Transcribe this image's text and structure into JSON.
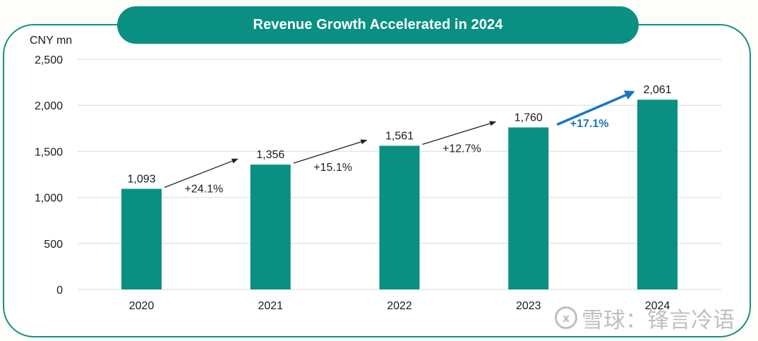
{
  "title": "Revenue Growth Accelerated in 2024",
  "watermark": {
    "logo": "x",
    "text": "雪球：锋言冷语"
  },
  "colors": {
    "bar": "#0a9082",
    "frame": "#14907f",
    "arrow": "#222222",
    "highlight_arrow": "#1777c4",
    "gridline": "#e6e6e6",
    "text": "#1a1a1a"
  },
  "chart_data": {
    "type": "bar",
    "title": "Revenue Growth Accelerated in 2024",
    "ylabel": "CNY mn",
    "xlabel": "",
    "categories": [
      "2020",
      "2021",
      "2022",
      "2023",
      "2024"
    ],
    "values": [
      1093,
      1356,
      1561,
      1760,
      2061
    ],
    "data_labels": [
      "1,093",
      "1,356",
      "1,561",
      "1,760",
      "2,061"
    ],
    "ylim": [
      0,
      2500
    ],
    "yticks": [
      0,
      500,
      1000,
      1500,
      2000,
      2500
    ],
    "ytick_labels": [
      "0",
      "500",
      "1,000",
      "1,500",
      "2,000",
      "2,500"
    ],
    "grid": true,
    "legend": "none",
    "annotations": [
      {
        "from": "2020",
        "to": "2021",
        "text": "+24.1%",
        "highlight": false
      },
      {
        "from": "2021",
        "to": "2022",
        "text": "+15.1%",
        "highlight": false
      },
      {
        "from": "2022",
        "to": "2023",
        "text": "+12.7%",
        "highlight": false
      },
      {
        "from": "2023",
        "to": "2024",
        "text": "+17.1%",
        "highlight": true
      }
    ]
  }
}
